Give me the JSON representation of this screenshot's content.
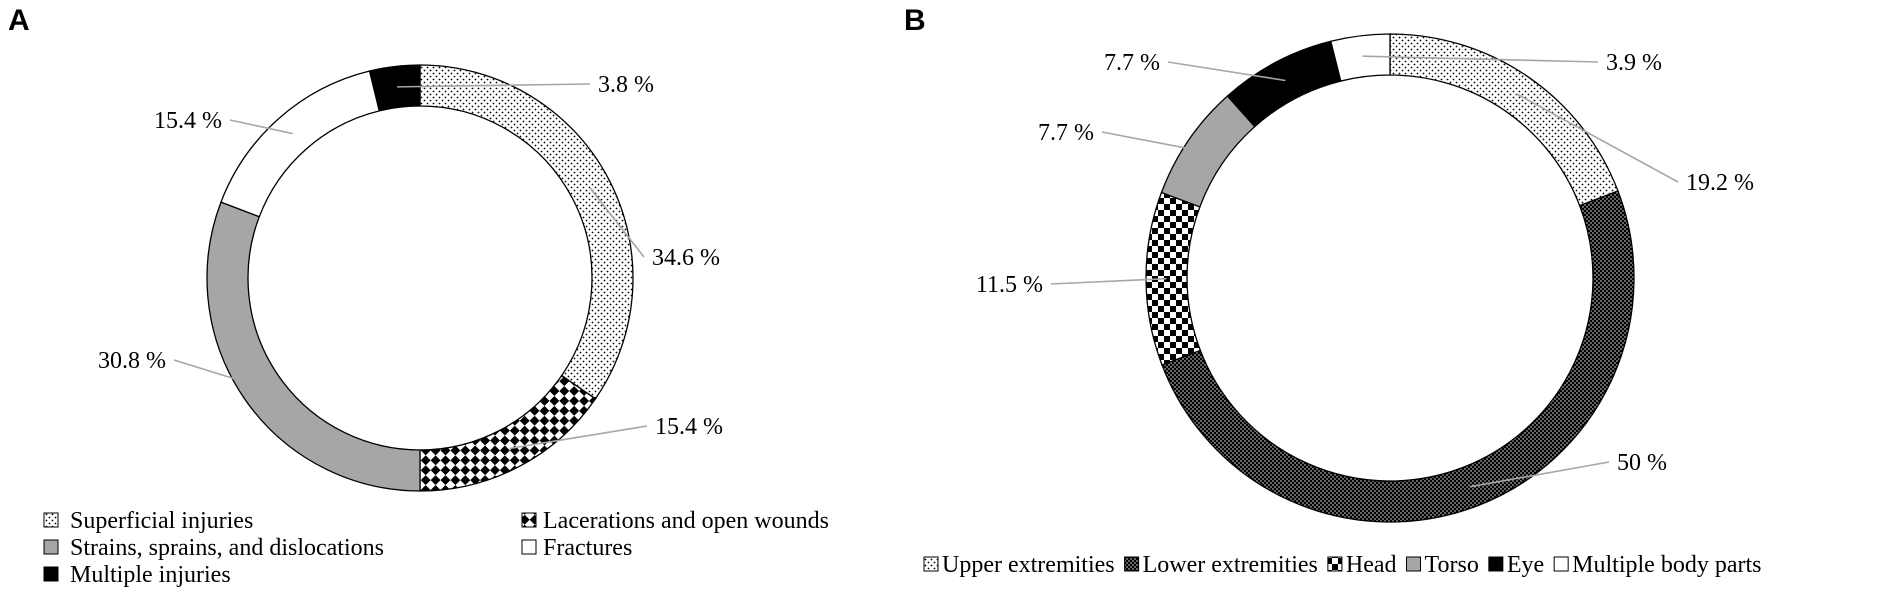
{
  "chart_data": [
    {
      "type": "pie",
      "panel": "A",
      "categories": [
        "Superficial injuries",
        "Lacerations and open wounds",
        "Strains, sprains, and dislocations",
        "Fractures",
        "Multiple injuries"
      ],
      "values": [
        34.6,
        15.4,
        30.8,
        15.4,
        3.8
      ],
      "data_labels": [
        "34.6 %",
        "15.4 %",
        "30.8 %",
        "15.4 %",
        "3.8 %"
      ],
      "patterns": [
        "dots",
        "checker-diamond",
        "solid-gray",
        "solid-white",
        "solid-black"
      ],
      "colors": [
        "#ffffff",
        "#000000",
        "#a6a6a6",
        "#ffffff",
        "#000000"
      ],
      "legend": [
        "Superficial injuries",
        "Lacerations and open wounds",
        "Strains, sprains, and dislocations",
        "Fractures",
        "Multiple injuries"
      ],
      "legend_position": "bottom"
    },
    {
      "type": "pie",
      "panel": "B",
      "categories": [
        "Upper extremities",
        "Lower extremities",
        "Head",
        "Torso",
        "Eye",
        "Multiple body parts"
      ],
      "values": [
        19.2,
        50,
        11.5,
        7.7,
        7.7,
        3.9
      ],
      "data_labels": [
        "19.2 %",
        "50 %",
        "11.5 %",
        "7.7 %",
        "7.7 %",
        "3.9 %"
      ],
      "patterns": [
        "dots",
        "dense-dots",
        "checker",
        "solid-gray",
        "solid-black",
        "solid-white"
      ],
      "colors": [
        "#ffffff",
        "#000000",
        "#000000",
        "#a6a6a6",
        "#000000",
        "#ffffff"
      ],
      "legend": [
        "Upper extremities",
        "Lower extremities",
        "Head",
        "Torso",
        "Eye",
        "Multiple body parts"
      ],
      "legend_position": "bottom"
    }
  ]
}
